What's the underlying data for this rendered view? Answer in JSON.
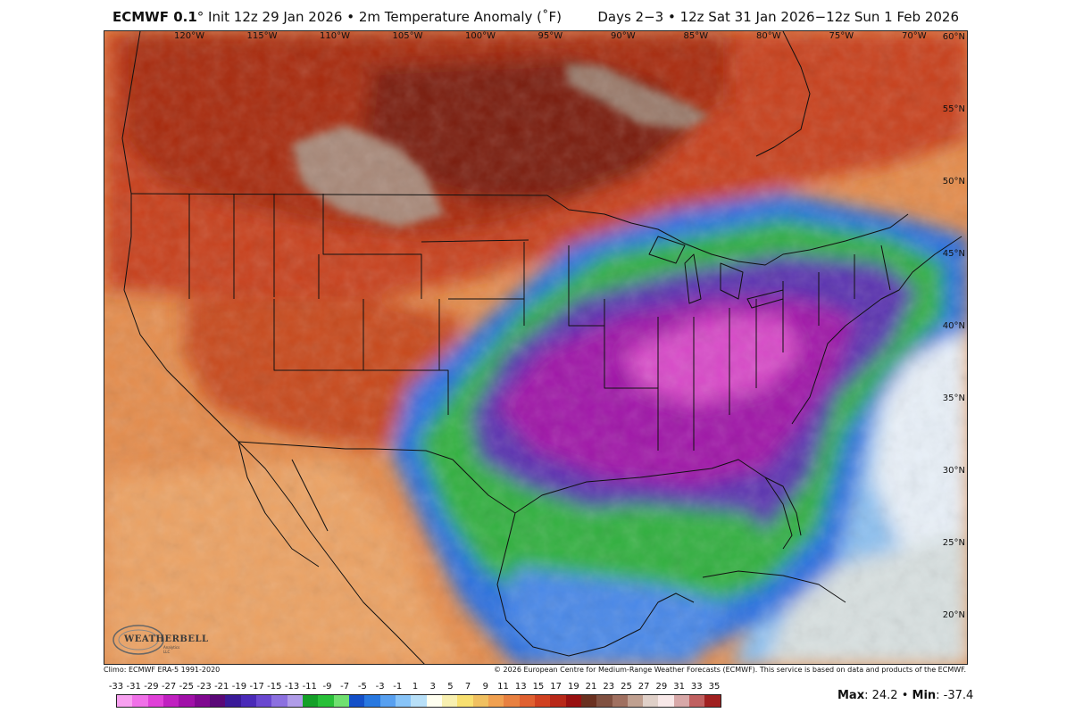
{
  "header": {
    "brand": "ECMWF 0.1",
    "degree": "°",
    "init": " Init 12z 29 Jan 2026",
    "variable": "2m Temperature Anomaly (˚F)",
    "bullet": "•",
    "valid": "Days 2−3 • 12z Sat 31 Jan 2026−12z Sun 1 Feb 2026"
  },
  "map": {
    "longitudes": [
      "120°W",
      "115°W",
      "110°W",
      "105°W",
      "100°W",
      "95°W",
      "90°W",
      "85°W",
      "80°W",
      "75°W",
      "70°W"
    ],
    "latitudes": [
      "60°N",
      "55°N",
      "50°N",
      "45°N",
      "40°N",
      "35°N",
      "30°N",
      "25°N",
      "20°N"
    ],
    "colors": {
      "deep_warm": "#7a1a0c",
      "warm": "#c8461a",
      "mild_warm": "#e88a48",
      "slight_warm": "#f0b888",
      "near_zero": "#f4e8c8",
      "cool_blue": "#3a7ae0",
      "light_blue": "#8cc0f0",
      "green": "#3ab84a",
      "purple": "#6a3ab8",
      "magenta": "#a018a8",
      "hot_pink": "#d840c8",
      "extreme_warm_gray": "#a08070"
    }
  },
  "logo": {
    "name": "WEATHERBELL",
    "sub": "Analytics LLC"
  },
  "footer": {
    "climo": "Climo: ECMWF ERA-5 1991-2020",
    "copyright": "© 2026 European Centre for Medium-Range Weather Forecasts (ECMWF). This service is based on data and products of the ECMWF."
  },
  "scale": {
    "labels": [
      "-33",
      "-31",
      "-29",
      "-27",
      "-25",
      "-23",
      "-21",
      "-19",
      "-17",
      "-15",
      "-13",
      "-11",
      "-9",
      "-7",
      "-5",
      "-3",
      "-1",
      "1",
      "3",
      "5",
      "7",
      "9",
      "11",
      "13",
      "15",
      "17",
      "19",
      "21",
      "23",
      "25",
      "27",
      "29",
      "31",
      "33",
      "35"
    ],
    "colors": [
      "#f8a0f0",
      "#f070e8",
      "#e040d8",
      "#c020c0",
      "#a010a8",
      "#800890",
      "#5a0878",
      "#3a1a98",
      "#4a2ab8",
      "#6a48d0",
      "#8c70e0",
      "#b09ce8",
      "#14a028",
      "#28c038",
      "#70e070",
      "#1450c8",
      "#2878e0",
      "#58a0f0",
      "#88c4f8",
      "#b8e0f8",
      "#fffff0",
      "#f8f0b0",
      "#f8e070",
      "#f0c060",
      "#f0a050",
      "#e88040",
      "#e06030",
      "#d04020",
      "#b82818",
      "#981010",
      "#6a3020",
      "#805040",
      "#a07060",
      "#c0a090",
      "#e0d0c8",
      "#f8e8e8",
      "#d8a8a8",
      "#c06060",
      "#a02020"
    ]
  },
  "stats": {
    "max_label": "Max",
    "max_value": ": 24.2",
    "sep": " • ",
    "min_label": "Min",
    "min_value": ": -37.4"
  }
}
